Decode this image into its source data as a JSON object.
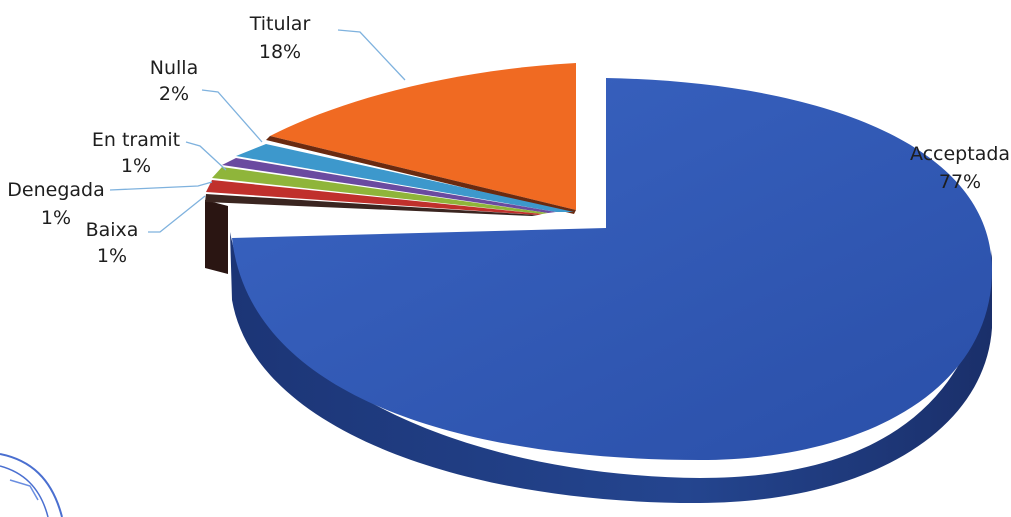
{
  "chart_data": {
    "type": "pie",
    "title": "",
    "three_d": true,
    "exploded_slice": "Acceptada",
    "slices": [
      {
        "name": "Acceptada",
        "label": "Acceptada",
        "value_label": "77%",
        "value": 77,
        "color": "#2f57b2"
      },
      {
        "name": "Baixa",
        "label": "Baixa",
        "value_label": "1%",
        "value": 1,
        "color": "#3a2520"
      },
      {
        "name": "Denegada",
        "label": "Denegada",
        "value_label": "1%",
        "value": 1,
        "color": "#c0302c"
      },
      {
        "name": "En tramit",
        "label": "En tramit",
        "value_label": "1%",
        "value": 1,
        "color": "#8fb53a"
      },
      {
        "name": "Nulla",
        "label": "Nulla",
        "value_label": "2%",
        "value": 2,
        "color": "#6a4aa0"
      },
      {
        "name": "Nulla-blue",
        "label": "",
        "value_label": "",
        "value": 2,
        "color": "#3d98cc"
      },
      {
        "name": "Titular",
        "label": "Titular",
        "value_label": "18%",
        "value": 18,
        "color": "#f06a22"
      }
    ],
    "legend": "none"
  }
}
